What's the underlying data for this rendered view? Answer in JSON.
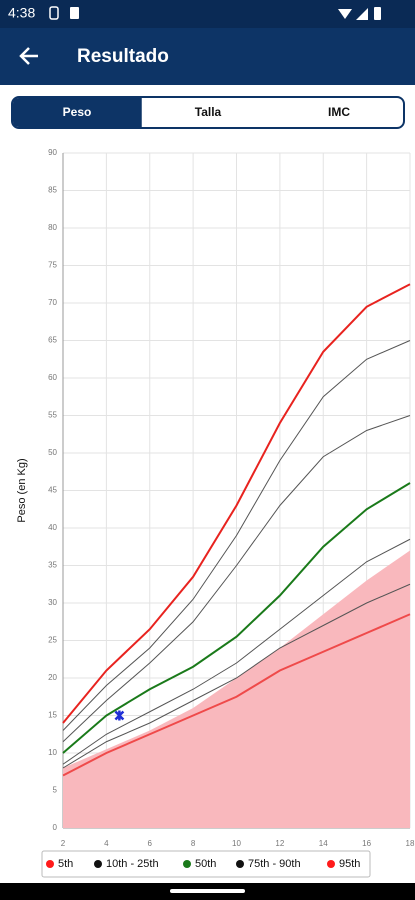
{
  "status_bar": {
    "time": "4:38"
  },
  "app_bar": {
    "title": "Resultado"
  },
  "tabs": [
    "Peso",
    "Talla",
    "IMC"
  ],
  "chart_data": {
    "type": "line",
    "ylabel": "Peso (en Kg)",
    "x": [
      2,
      4,
      6,
      8,
      10,
      12,
      14,
      16,
      18
    ],
    "xlim": [
      2,
      18
    ],
    "xticks": [
      2,
      4,
      6,
      8,
      10,
      12,
      14,
      16,
      18
    ],
    "ylim": [
      0,
      90
    ],
    "yticks": [
      0,
      5,
      10,
      15,
      20,
      25,
      30,
      35,
      40,
      45,
      50,
      55,
      60,
      65,
      70,
      75,
      80,
      85,
      90
    ],
    "grid": true,
    "area": {
      "color": "#f9b8bd",
      "values": [
        8,
        10.5,
        13,
        16,
        20,
        24,
        28.5,
        33,
        37
      ]
    },
    "series": [
      {
        "color": "#ef4a4a",
        "values": [
          7,
          10,
          12.5,
          15,
          17.5,
          21,
          23.5,
          26,
          28.5
        ]
      },
      {
        "color": "#555555",
        "values": [
          8,
          11.5,
          14,
          17,
          20,
          24,
          27,
          30,
          32.5
        ]
      },
      {
        "color": "#555555",
        "values": [
          8.5,
          12.5,
          15.5,
          18.5,
          22,
          26.5,
          31,
          35.5,
          38.5
        ]
      },
      {
        "color": "#1a7a1a",
        "values": [
          10,
          15,
          18.5,
          21.5,
          25.5,
          31,
          37.5,
          42.5,
          46
        ]
      },
      {
        "color": "#555555",
        "values": [
          11.5,
          17,
          22,
          27.5,
          35,
          43,
          49.5,
          53,
          55
        ]
      },
      {
        "color": "#555555",
        "values": [
          13,
          19,
          24,
          30.5,
          39,
          49,
          57.5,
          62.5,
          65
        ]
      },
      {
        "color": "#e8231f",
        "values": [
          14,
          21,
          26.5,
          33.5,
          43,
          54,
          63.5,
          69.5,
          72.5
        ]
      }
    ],
    "point": {
      "x": 4.6,
      "y": 15,
      "color": "#1f2fd6"
    },
    "legend": [
      {
        "name": "5th",
        "color": "#ff1a1a"
      },
      {
        "name": "10th - 25th",
        "color": "#111111"
      },
      {
        "name": "50th",
        "color": "#1a7a1a"
      },
      {
        "name": "75th - 90th",
        "color": "#111111"
      },
      {
        "name": "95th",
        "color": "#ff1a1a"
      }
    ]
  }
}
